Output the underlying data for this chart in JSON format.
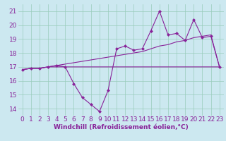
{
  "xlabel": "Windchill (Refroidissement éolien,°C)",
  "background_color": "#cce8f0",
  "grid_color": "#99ccbb",
  "line_color": "#882299",
  "x_values": [
    0,
    1,
    2,
    3,
    4,
    5,
    6,
    7,
    8,
    9,
    10,
    11,
    12,
    13,
    14,
    15,
    16,
    17,
    18,
    19,
    20,
    21,
    22,
    23
  ],
  "line1_y": [
    16.8,
    16.9,
    16.9,
    17.0,
    17.1,
    17.0,
    15.8,
    14.8,
    14.3,
    13.8,
    15.3,
    18.3,
    18.5,
    18.2,
    18.3,
    19.6,
    21.0,
    19.3,
    19.4,
    18.9,
    20.4,
    19.1,
    19.2,
    17.0
  ],
  "line2_y": [
    16.8,
    16.9,
    16.9,
    17.0,
    17.0,
    17.0,
    17.0,
    17.0,
    17.0,
    17.0,
    17.0,
    17.0,
    17.0,
    17.0,
    17.0,
    17.0,
    17.0,
    17.0,
    17.0,
    17.0,
    17.0,
    17.0,
    17.0,
    17.0
  ],
  "line3_y": [
    16.8,
    16.9,
    16.9,
    17.0,
    17.1,
    17.2,
    17.3,
    17.4,
    17.5,
    17.6,
    17.7,
    17.8,
    17.9,
    18.0,
    18.1,
    18.3,
    18.5,
    18.6,
    18.8,
    18.9,
    19.1,
    19.2,
    19.3,
    17.0
  ],
  "ylim": [
    13.5,
    21.5
  ],
  "yticks": [
    14,
    15,
    16,
    17,
    18,
    19,
    20,
    21
  ],
  "xticks": [
    0,
    1,
    2,
    3,
    4,
    5,
    6,
    7,
    8,
    9,
    10,
    11,
    12,
    13,
    14,
    15,
    16,
    17,
    18,
    19,
    20,
    21,
    22,
    23
  ],
  "font_color": "#882299",
  "font_size": 6.5,
  "marker": "D",
  "marker_size": 2.5,
  "linewidth": 0.8
}
